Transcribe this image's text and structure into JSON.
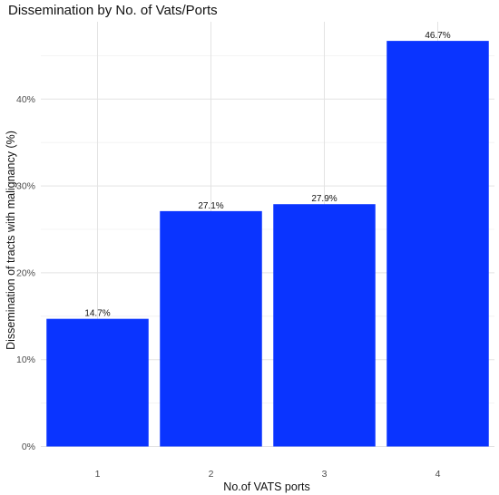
{
  "chart_data": {
    "type": "bar",
    "title": "Dissemination by No. of Vats/Ports",
    "xlabel": "No.of VATS ports",
    "ylabel": "Dissemination of tracts with malignancy (%)",
    "categories": [
      "1",
      "2",
      "3",
      "4"
    ],
    "values": [
      14.7,
      27.1,
      27.9,
      46.7
    ],
    "data_labels": [
      "14.7%",
      "27.1%",
      "27.9%",
      "46.7%"
    ],
    "ylim": [
      0,
      50
    ],
    "y_ticks": [
      0,
      10,
      20,
      30,
      40
    ],
    "y_tick_labels": [
      "0%",
      "10%",
      "20%",
      "30%",
      "40%"
    ],
    "bar_color": "#0a34ff",
    "grid": true,
    "legend": "none"
  }
}
